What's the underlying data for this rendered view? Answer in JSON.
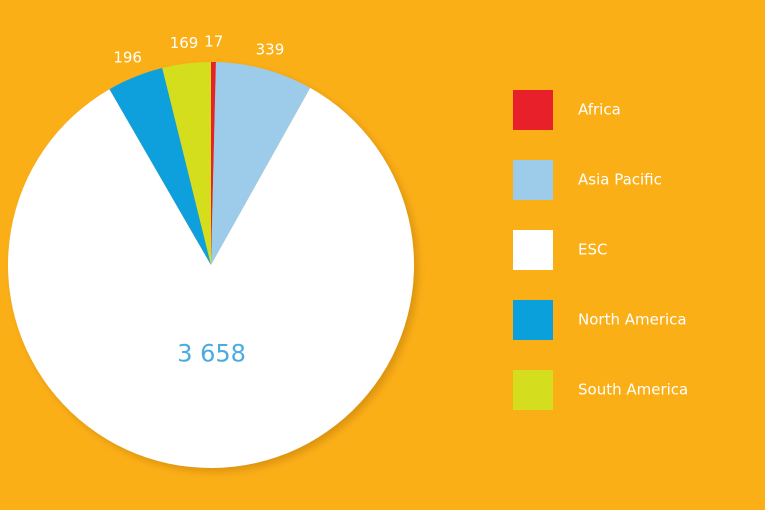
{
  "chart_data": {
    "type": "pie",
    "categories": [
      "Africa",
      "Asia Pacific",
      "ESC",
      "North America",
      "South America"
    ],
    "values": [
      17,
      339,
      3658,
      196,
      169
    ],
    "value_labels": [
      "17",
      "339",
      "3 658",
      "196",
      "169"
    ],
    "colors": [
      "#e8202a",
      "#9dcbea",
      "#ffffff",
      "#0aa0dc",
      "#d4de1e"
    ],
    "legend": "right"
  }
}
